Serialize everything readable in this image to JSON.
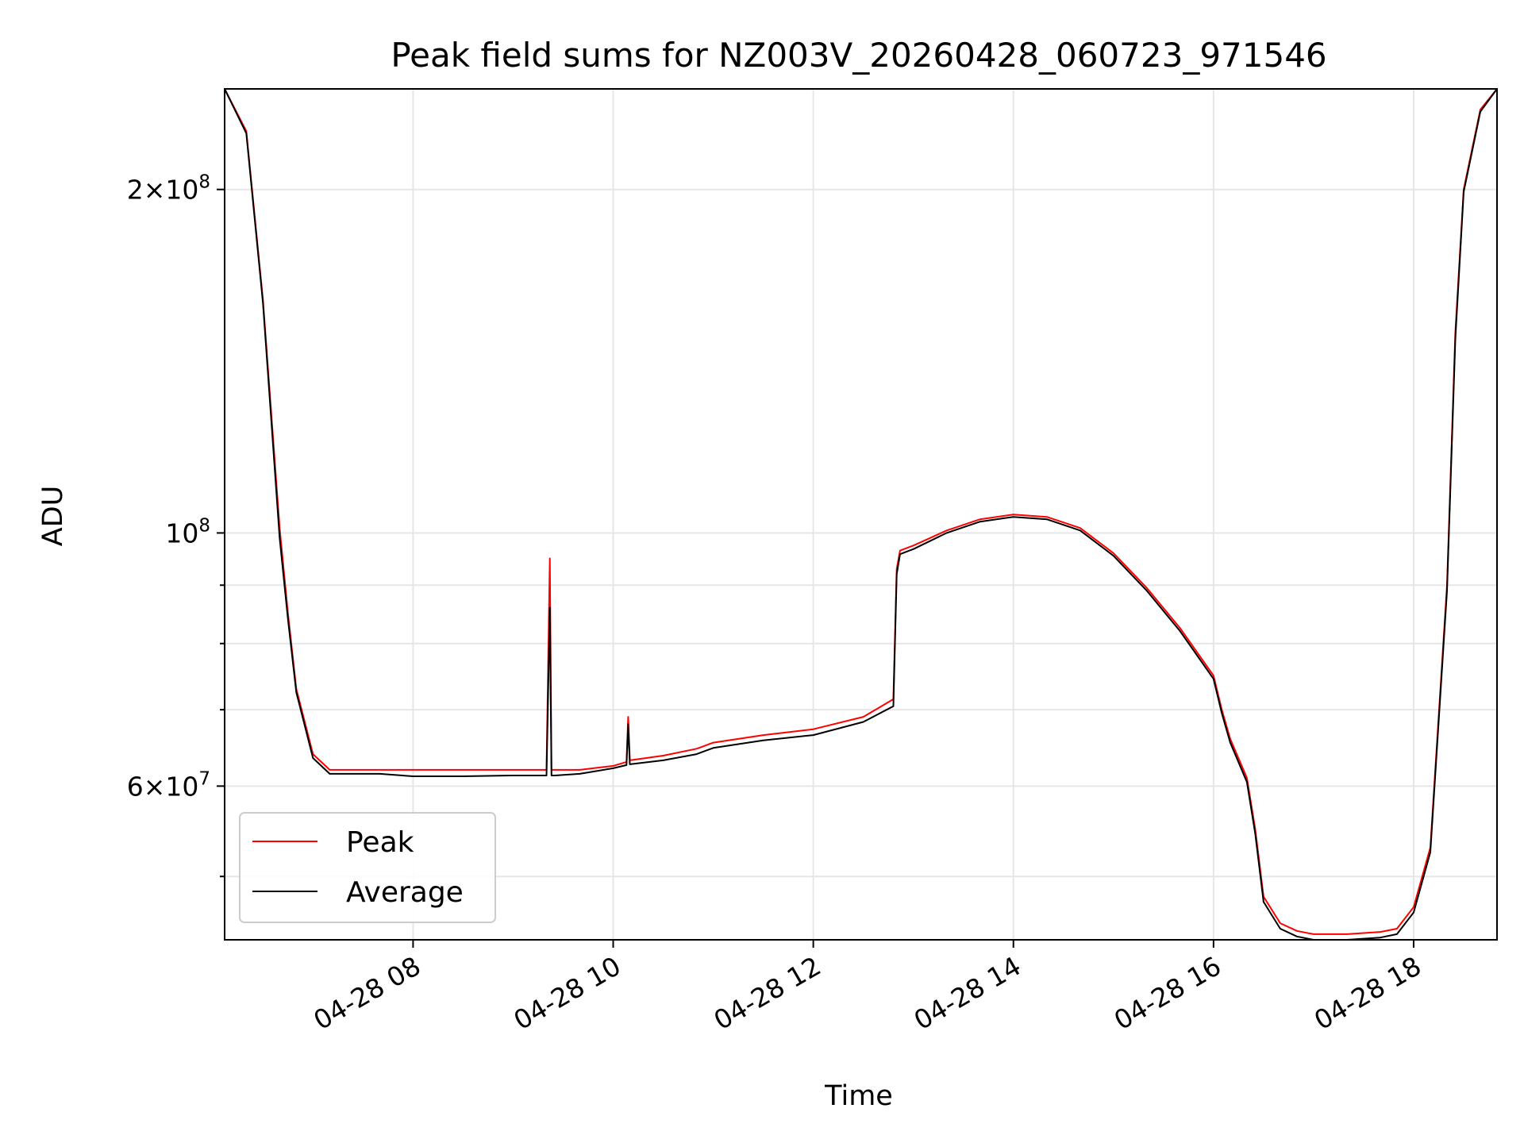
{
  "chart_data": {
    "type": "line",
    "title": "Peak field sums for NZ003V_20260428_060723_971546",
    "xlabel": "Time",
    "ylabel": "ADU",
    "y_scale": "log",
    "ylim": [
      44000000,
      245000000
    ],
    "xlim": [
      "04-28 06:07",
      "04-28 18:50"
    ],
    "grid": true,
    "legend_position": "lower-left",
    "x_ticks": [
      "04-28 08",
      "04-28 10",
      "04-28 12",
      "04-28 14",
      "04-28 16",
      "04-28 18"
    ],
    "y_major_ticks": [
      {
        "value": 200000000,
        "mantissa": "2",
        "exponent": "8"
      },
      {
        "value": 100000000,
        "mantissa": "",
        "exponent": "8"
      },
      {
        "value": 60000000,
        "mantissa": "6",
        "exponent": "7"
      }
    ],
    "y_minor_ticks": [
      50000000,
      70000000,
      80000000,
      90000000
    ],
    "series": [
      {
        "name": "Peak",
        "color": "#ff0000",
        "x": [
          "04-28 06:07",
          "04-28 06:20",
          "04-28 06:30",
          "04-28 06:40",
          "04-28 06:45",
          "04-28 06:50",
          "04-28 07:00",
          "04-28 07:10",
          "04-28 07:20",
          "04-28 07:40",
          "04-28 08:00",
          "04-28 08:30",
          "04-28 09:00",
          "04-28 09:20",
          "04-28 09:22",
          "04-28 09:23",
          "04-28 09:25",
          "04-28 09:40",
          "04-28 10:00",
          "04-28 10:08",
          "04-28 10:09",
          "04-28 10:10",
          "04-28 10:30",
          "04-28 10:50",
          "04-28 11:00",
          "04-28 11:30",
          "04-28 12:00",
          "04-28 12:30",
          "04-28 12:48",
          "04-28 12:50",
          "04-28 12:52",
          "04-28 13:00",
          "04-28 13:20",
          "04-28 13:40",
          "04-28 14:00",
          "04-28 14:20",
          "04-28 14:40",
          "04-28 15:00",
          "04-28 15:20",
          "04-28 15:40",
          "04-28 16:00",
          "04-28 16:05",
          "04-28 16:10",
          "04-28 16:20",
          "04-28 16:25",
          "04-28 16:30",
          "04-28 16:40",
          "04-28 16:50",
          "04-28 17:00",
          "04-28 17:20",
          "04-28 17:40",
          "04-28 17:50",
          "04-28 18:00",
          "04-28 18:10",
          "04-28 18:20",
          "04-28 18:25",
          "04-28 18:30",
          "04-28 18:40",
          "04-28 18:50"
        ],
        "values": [
          245000000,
          225000000,
          160000000,
          101000000,
          85000000,
          73000000,
          64000000,
          62000000,
          62000000,
          62000000,
          62000000,
          62000000,
          62000000,
          62000000,
          95000000,
          62000000,
          62000000,
          62000000,
          62500000,
          63000000,
          69000000,
          63200000,
          63800000,
          64700000,
          65500000,
          66500000,
          67300000,
          69000000,
          71500000,
          93000000,
          96500000,
          97500000,
          100500000,
          102800000,
          103800000,
          103300000,
          101000000,
          96000000,
          89500000,
          82500000,
          75000000,
          70000000,
          66000000,
          61000000,
          55000000,
          48000000,
          45500000,
          44800000,
          44500000,
          44500000,
          44700000,
          45000000,
          47000000,
          53000000,
          90000000,
          150000000,
          200000000,
          235000000,
          245000000
        ]
      },
      {
        "name": "Average",
        "color": "#000000",
        "x": [
          "04-28 06:07",
          "04-28 06:20",
          "04-28 06:30",
          "04-28 06:40",
          "04-28 06:45",
          "04-28 06:50",
          "04-28 07:00",
          "04-28 07:10",
          "04-28 07:20",
          "04-28 07:40",
          "04-28 08:00",
          "04-28 08:30",
          "04-28 09:00",
          "04-28 09:20",
          "04-28 09:22",
          "04-28 09:23",
          "04-28 09:25",
          "04-28 09:40",
          "04-28 10:00",
          "04-28 10:08",
          "04-28 10:09",
          "04-28 10:10",
          "04-28 10:30",
          "04-28 10:50",
          "04-28 11:00",
          "04-28 11:30",
          "04-28 12:00",
          "04-28 12:30",
          "04-28 12:48",
          "04-28 12:50",
          "04-28 12:52",
          "04-28 13:00",
          "04-28 13:20",
          "04-28 13:40",
          "04-28 14:00",
          "04-28 14:20",
          "04-28 14:40",
          "04-28 15:00",
          "04-28 15:20",
          "04-28 15:40",
          "04-28 16:00",
          "04-28 16:05",
          "04-28 16:10",
          "04-28 16:20",
          "04-28 16:25",
          "04-28 16:30",
          "04-28 16:40",
          "04-28 16:50",
          "04-28 17:00",
          "04-28 17:20",
          "04-28 17:40",
          "04-28 17:50",
          "04-28 18:00",
          "04-28 18:10",
          "04-28 18:20",
          "04-28 18:25",
          "04-28 18:30",
          "04-28 18:40",
          "04-28 18:50"
        ],
        "values": [
          245000000,
          224000000,
          159000000,
          99000000,
          84000000,
          72500000,
          63500000,
          61500000,
          61500000,
          61500000,
          61200000,
          61200000,
          61300000,
          61300000,
          86000000,
          61300000,
          61300000,
          61500000,
          62200000,
          62600000,
          68000000,
          62700000,
          63200000,
          64000000,
          64800000,
          65800000,
          66500000,
          68300000,
          70500000,
          92000000,
          95800000,
          96800000,
          100000000,
          102300000,
          103300000,
          102800000,
          100500000,
          95500000,
          89000000,
          82000000,
          74500000,
          69500000,
          65500000,
          60500000,
          54500000,
          47500000,
          45000000,
          44300000,
          44000000,
          44000000,
          44200000,
          44500000,
          46500000,
          52500000,
          89000000,
          148000000,
          199000000,
          234000000,
          245000000
        ]
      }
    ]
  }
}
